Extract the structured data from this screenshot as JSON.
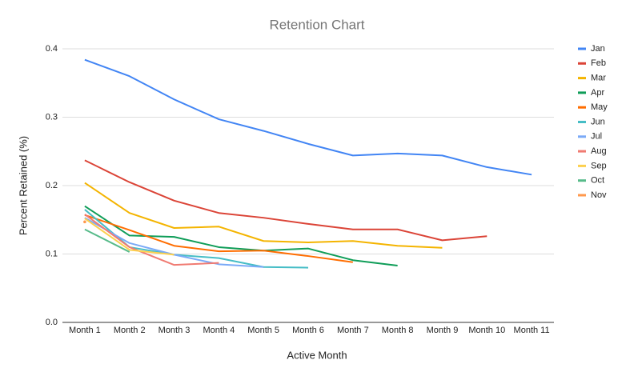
{
  "chart_data": {
    "type": "line",
    "title": "Retention Chart",
    "x_label": "Active Month",
    "y_label": "Percent Retained (%)",
    "categories": [
      "Month 1",
      "Month 2",
      "Month 3",
      "Month 4",
      "Month 5",
      "Month 6",
      "Month 7",
      "Month 8",
      "Month 9",
      "Month 10",
      "Month 11"
    ],
    "ylim": [
      0,
      0.4
    ],
    "yticks": [
      {
        "value": 0,
        "label": "0.0"
      },
      0.1,
      0.2,
      0.3,
      0.4
    ],
    "grid": true,
    "legend": "right",
    "series": [
      {
        "name": "Jan",
        "color": "#4285f4",
        "values": [
          0.384,
          0.36,
          0.326,
          0.297,
          0.28,
          0.261,
          0.244,
          0.247,
          0.244,
          0.227,
          0.216
        ]
      },
      {
        "name": "Feb",
        "color": "#db4437",
        "values": [
          0.237,
          0.205,
          0.178,
          0.16,
          0.153,
          0.144,
          0.136,
          0.136,
          0.12,
          0.126,
          null
        ]
      },
      {
        "name": "Mar",
        "color": "#f4b400",
        "values": [
          0.204,
          0.16,
          0.138,
          0.14,
          0.119,
          0.117,
          0.119,
          0.112,
          0.109,
          null,
          null
        ]
      },
      {
        "name": "Apr",
        "color": "#0f9d58",
        "values": [
          0.17,
          0.127,
          0.125,
          0.11,
          0.105,
          0.108,
          0.091,
          0.083,
          null,
          null,
          null
        ]
      },
      {
        "name": "May",
        "color": "#ff6d00",
        "values": [
          0.157,
          0.135,
          0.112,
          0.104,
          0.105,
          0.097,
          0.088,
          null,
          null,
          null,
          null
        ]
      },
      {
        "name": "Jun",
        "color": "#46bdc6",
        "values": [
          0.165,
          0.11,
          0.099,
          0.094,
          0.081,
          0.08,
          null,
          null,
          null,
          null,
          null
        ]
      },
      {
        "name": "Jul",
        "color": "#7baaf7",
        "values": [
          0.153,
          0.116,
          0.099,
          0.085,
          0.081,
          null,
          null,
          null,
          null,
          null,
          null
        ]
      },
      {
        "name": "Aug",
        "color": "#f07b72",
        "values": [
          0.158,
          0.11,
          0.084,
          0.087,
          null,
          null,
          null,
          null,
          null,
          null,
          null
        ]
      },
      {
        "name": "Sep",
        "color": "#fcd04f",
        "values": [
          0.152,
          0.106,
          0.099,
          null,
          null,
          null,
          null,
          null,
          null,
          null,
          null
        ]
      },
      {
        "name": "Oct",
        "color": "#57bb8a",
        "values": [
          0.136,
          0.103,
          null,
          null,
          null,
          null,
          null,
          null,
          null,
          null,
          null
        ]
      },
      {
        "name": "Nov",
        "color": "#ff994d",
        "values": [
          0.147,
          null,
          null,
          null,
          null,
          null,
          null,
          null,
          null,
          null,
          null
        ]
      }
    ]
  }
}
